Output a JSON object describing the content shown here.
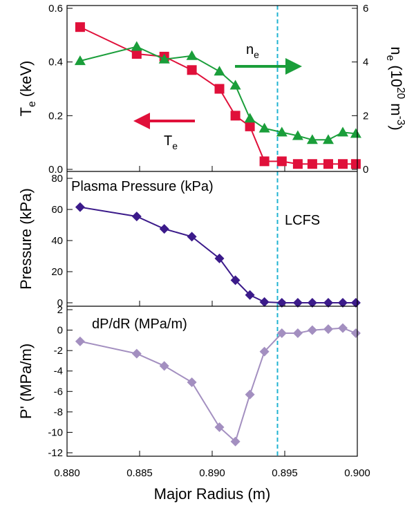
{
  "chart_data": [
    {
      "type": "line",
      "ylabel": [
        "T",
        "e",
        " (keV)"
      ],
      "y2label": [
        "n",
        "e",
        " (10",
        "20",
        " m",
        "-3",
        ")"
      ],
      "x": [
        0.8809,
        0.8848,
        0.8867,
        0.8886,
        0.8905,
        0.8916,
        0.8926,
        0.8936,
        0.8948,
        0.8959,
        0.8969,
        0.898,
        0.899,
        0.8999
      ],
      "xlim": [
        0.88,
        0.9
      ],
      "ylim": [
        0,
        0.6
      ],
      "yticks": [
        {
          "value": 0,
          "label": "0.0"
        },
        0.2,
        0.4,
        0.6
      ],
      "y2lim": [
        0,
        6
      ],
      "y2ticks": [
        0,
        2,
        4,
        6
      ],
      "vline": 0.8945,
      "series": [
        {
          "name": [
            "T",
            "e"
          ],
          "color": "#e0103a",
          "marker": "square",
          "values": [
            0.53,
            0.43,
            0.42,
            0.37,
            0.3,
            0.2,
            0.16,
            0.03,
            0.03,
            0.02,
            0.02,
            0.02,
            0.02,
            0.02
          ]
        },
        {
          "name": [
            "n",
            "e"
          ],
          "color": "#1a9e3a",
          "marker": "triangle",
          "axis": "y2",
          "values": [
            4.04,
            4.57,
            4.1,
            4.23,
            3.65,
            3.13,
            1.9,
            1.53,
            1.38,
            1.25,
            1.1,
            1.1,
            1.38,
            1.33
          ]
        }
      ]
    },
    {
      "type": "line",
      "title": "Plasma Pressure (kPa)",
      "ylabel": "Pressure (kPa)",
      "annotation": "LCFS",
      "x": [
        0.8809,
        0.8848,
        0.8867,
        0.8886,
        0.8905,
        0.8916,
        0.8926,
        0.8936,
        0.8948,
        0.8959,
        0.8969,
        0.898,
        0.899,
        0.8999
      ],
      "xlim": [
        0.88,
        0.9
      ],
      "ylim": [
        0,
        80
      ],
      "yticks": [
        0,
        20,
        40,
        60,
        80
      ],
      "vline": 0.8945,
      "series": [
        {
          "color": "#3b1a8a",
          "marker": "diamond",
          "values": [
            61.5,
            55.5,
            47.5,
            42.5,
            28.5,
            14.5,
            5,
            0.5,
            0,
            0,
            0,
            0,
            0,
            0
          ]
        }
      ]
    },
    {
      "type": "line",
      "title": "dP/dR (MPa/m)",
      "ylabel": "P' (MPa/m)",
      "xlabel": "Major Radius (m)",
      "x": [
        0.8809,
        0.8848,
        0.8867,
        0.8886,
        0.8905,
        0.8916,
        0.8926,
        0.8936,
        0.8948,
        0.8959,
        0.8969,
        0.898,
        0.899,
        0.8999
      ],
      "xlim": [
        0.88,
        0.9
      ],
      "xticks": [
        {
          "value": 0.88,
          "label": "0.880"
        },
        0.885,
        {
          "value": 0.89,
          "label": "0.890"
        },
        0.895,
        {
          "value": 0.9,
          "label": "0.900"
        }
      ],
      "ylim": [
        -12,
        2
      ],
      "yticks": [
        -12,
        -10,
        -8,
        -6,
        -4,
        -2,
        0,
        2
      ],
      "vline": 0.8945,
      "series": [
        {
          "color": "#a38fc0",
          "marker": "diamond",
          "values": [
            -1.1,
            -2.3,
            -3.5,
            -5.1,
            -9.5,
            -10.9,
            -6.3,
            -2.1,
            -0.3,
            -0.3,
            0,
            0.1,
            0.2,
            -0.3
          ]
        }
      ]
    }
  ]
}
